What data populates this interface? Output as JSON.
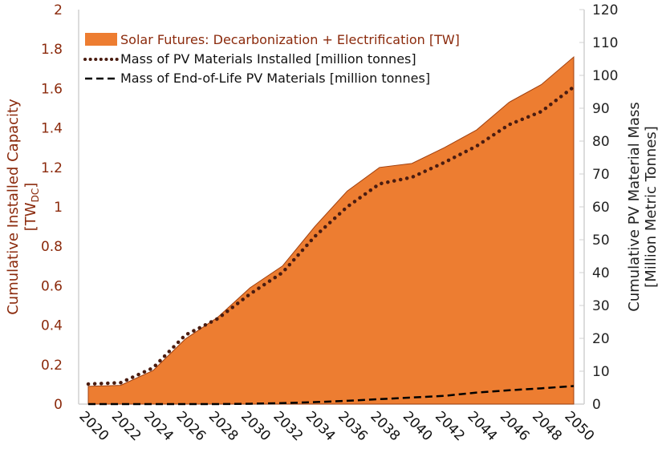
{
  "chart_data": {
    "type": "area",
    "x": [
      2020,
      2022,
      2024,
      2026,
      2028,
      2030,
      2032,
      2034,
      2036,
      2038,
      2040,
      2042,
      2044,
      2046,
      2048,
      2050
    ],
    "x_tick_labels": [
      "2020",
      "2022",
      "2024",
      "2026",
      "2028",
      "2030",
      "2032",
      "2034",
      "2036",
      "2038",
      "2040",
      "2042",
      "2044",
      "2046",
      "2048",
      "2050"
    ],
    "ylabel_left": "Cumulative Installed Capacity",
    "ylabel_left_unit_main": "[TW",
    "ylabel_left_unit_sub": "DC",
    "ylabel_left_unit_end": "]",
    "ylabel_right_line1": "Cumulative PV Material Mass",
    "ylabel_right_line2": "[Million Metric Tonnes]",
    "ylim_left": [
      0,
      2
    ],
    "ylim_right": [
      0,
      120
    ],
    "y_ticks_left": [
      "0",
      "0.2",
      "0.4",
      "0.6",
      "0.8",
      "1",
      "1.2",
      "1.4",
      "1.6",
      "1.8",
      "2"
    ],
    "y_ticks_right": [
      "0",
      "10",
      "20",
      "30",
      "40",
      "50",
      "60",
      "70",
      "80",
      "90",
      "100",
      "110",
      "120"
    ],
    "grid": false,
    "legend_position": "top-left",
    "series": [
      {
        "name": "Solar Futures: Decarbonization + Electrification [TW]",
        "type": "area",
        "axis": "left",
        "color": "#ED7D31",
        "values": [
          0.09,
          0.095,
          0.17,
          0.33,
          0.44,
          0.59,
          0.7,
          0.9,
          1.08,
          1.2,
          1.22,
          1.3,
          1.39,
          1.53,
          1.62,
          1.76
        ]
      },
      {
        "name": "Mass of PV Materials Installed [million tonnes]",
        "type": "line-dotted",
        "axis": "right",
        "color": "#4a1c10",
        "values": [
          6.1,
          6.5,
          11,
          21,
          26,
          33.5,
          40,
          51,
          60,
          67,
          69,
          73.5,
          78.5,
          85,
          89,
          96.5
        ]
      },
      {
        "name": "Mass of End-of-Life PV Materials [million tonnes]",
        "type": "line-dashed",
        "axis": "right",
        "color": "#000000",
        "values": [
          0,
          0,
          0,
          0,
          0,
          0.1,
          0.3,
          0.6,
          1,
          1.5,
          2,
          2.5,
          3.5,
          4.2,
          4.8,
          5.5
        ]
      }
    ]
  }
}
